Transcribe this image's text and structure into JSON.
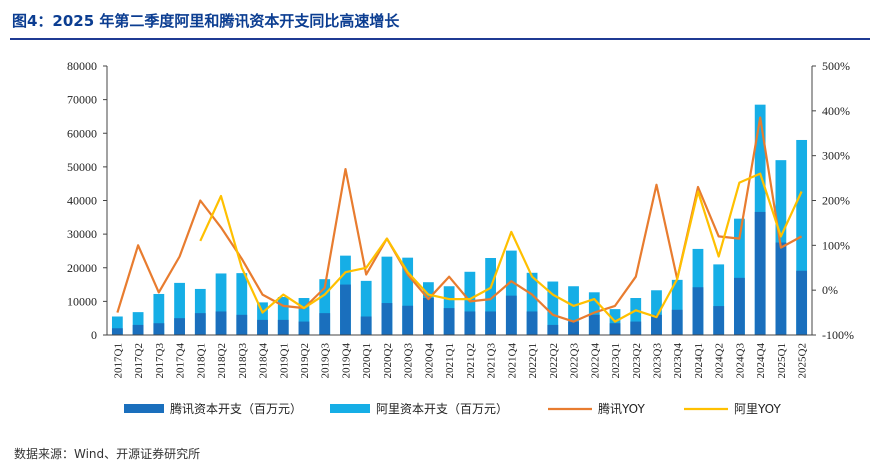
{
  "header": {
    "title": "图4：2025 年第二季度阿里和腾讯资本开支同比高速增长"
  },
  "footer": {
    "source": "数据来源：Wind、开源证券研究所"
  },
  "colors": {
    "tencent_bar": "#1a6fbd",
    "alibaba_bar": "#16aee6",
    "tencent_line": "#e87c2f",
    "alibaba_line": "#ffc000"
  },
  "chart_data": {
    "type": "bar",
    "title": "图4：2025 年第二季度阿里和腾讯资本开支同比高速增长",
    "stacked": false,
    "overlapping_bars": true,
    "categories": [
      "2017Q1",
      "2017Q2",
      "2017Q3",
      "2017Q4",
      "2018Q1",
      "2018Q2",
      "2018Q3",
      "2018Q4",
      "2019Q1",
      "2019Q2",
      "2019Q3",
      "2019Q4",
      "2020Q1",
      "2020Q2",
      "2020Q3",
      "2020Q4",
      "2021Q1",
      "2021Q2",
      "2021Q3",
      "2021Q4",
      "2022Q1",
      "2022Q2",
      "2022Q3",
      "2022Q4",
      "2023Q1",
      "2023Q2",
      "2023Q3",
      "2023Q4",
      "2024Q1",
      "2024Q2",
      "2024Q3",
      "2024Q4",
      "2025Q1",
      "2025Q2"
    ],
    "y_left": {
      "min": 0,
      "max": 80000,
      "step": 10000,
      "ticks": [
        "0",
        "10000",
        "20000",
        "30000",
        "40000",
        "50000",
        "60000",
        "70000",
        "80000"
      ]
    },
    "y_right": {
      "min": -100,
      "max": 500,
      "step": 100,
      "ticks": [
        "-100%",
        "0%",
        "100%",
        "200%",
        "300%",
        "400%",
        "500%"
      ]
    },
    "series": [
      {
        "name": "腾讯资本开支（百万元）",
        "kind": "bar",
        "axis": "left",
        "values": [
          2000,
          3000,
          3500,
          5000,
          6500,
          7000,
          6000,
          4500,
          4500,
          4000,
          6500,
          15000,
          5500,
          9500,
          8700,
          11000,
          8000,
          7000,
          7000,
          11700,
          7000,
          3000,
          4000,
          6000,
          3500,
          4000,
          6000,
          7500,
          14200,
          8600,
          17000,
          36600,
          27500,
          19100
        ]
      },
      {
        "name": "阿里资本开支（百万元）",
        "kind": "bar",
        "axis": "left",
        "values": [
          5500,
          6800,
          12200,
          15500,
          13700,
          18300,
          18400,
          9700,
          11300,
          11000,
          16600,
          23600,
          16100,
          23300,
          23000,
          15700,
          14500,
          18800,
          22900,
          25100,
          18500,
          15900,
          14500,
          12700,
          7700,
          11000,
          13300,
          16400,
          25600,
          21000,
          34600,
          68500,
          52000,
          58000
        ]
      },
      {
        "name": "腾讯YOY",
        "kind": "line",
        "axis": "right",
        "values": [
          -50,
          100,
          -5,
          75,
          200,
          140,
          70,
          -10,
          -35,
          -40,
          5,
          270,
          35,
          115,
          35,
          -20,
          30,
          -25,
          -20,
          20,
          -10,
          -55,
          -70,
          -50,
          -35,
          30,
          235,
          25,
          230,
          120,
          115,
          385,
          95,
          120
        ]
      },
      {
        "name": "阿里YOY",
        "kind": "line",
        "axis": "right",
        "values": [
          null,
          null,
          null,
          null,
          110,
          210,
          50,
          -50,
          -10,
          -40,
          -10,
          40,
          50,
          115,
          40,
          -10,
          -20,
          -20,
          5,
          130,
          30,
          -10,
          -35,
          -20,
          -70,
          -45,
          -60,
          25,
          220,
          75,
          240,
          260,
          120,
          220
        ]
      }
    ],
    "legend_position": "bottom"
  }
}
